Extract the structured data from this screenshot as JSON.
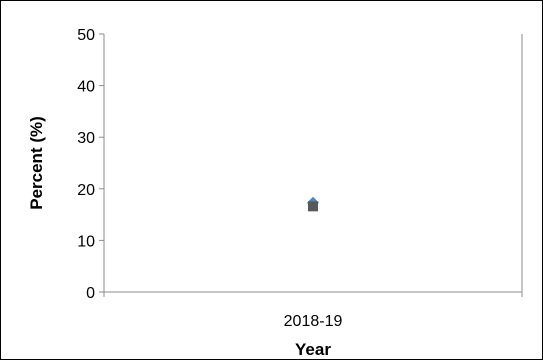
{
  "chart_data": {
    "type": "scatter",
    "title": "",
    "xlabel": "Year",
    "ylabel": "Percent (%)",
    "categories": [
      "2018-19"
    ],
    "ylim": [
      0,
      50
    ],
    "yticks": [
      0,
      10,
      20,
      30,
      40,
      50
    ],
    "grid": false,
    "legend": "none",
    "series": [
      {
        "values": [
          17.3
        ],
        "marker": "diamond",
        "color": "#4a86c5"
      },
      {
        "values": [
          16.6
        ],
        "marker": "square",
        "color": "#595959"
      }
    ]
  }
}
